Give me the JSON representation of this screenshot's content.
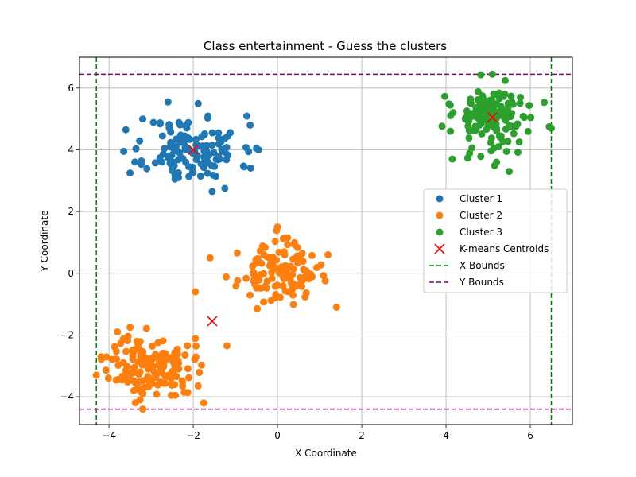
{
  "chart_data": {
    "type": "scatter",
    "title": "Class entertainment - Guess the clusters",
    "xlabel": "X Coordinate",
    "ylabel": "Y Coordinate",
    "xlim": [
      -4.7,
      7.0
    ],
    "ylim": [
      -4.9,
      7.0
    ],
    "xticks": [
      -4,
      -2,
      0,
      2,
      4,
      6
    ],
    "yticks": [
      -4,
      -2,
      0,
      2,
      4,
      6
    ],
    "xtick_labels": [
      "−4",
      "−2",
      "0",
      "2",
      "4",
      "6"
    ],
    "ytick_labels": [
      "−4",
      "−2",
      "0",
      "2",
      "4",
      "6"
    ],
    "grid": true,
    "legend_position": "center-right",
    "series": [
      {
        "name": "Cluster 1",
        "color": "#1f77b4",
        "center": [
          -2.0,
          4.0
        ],
        "spread": [
          0.55,
          0.55
        ],
        "count": 130,
        "seed": 11,
        "extra_points": [
          [
            -2.6,
            5.55
          ],
          [
            -3.6,
            4.65
          ],
          [
            -3.65,
            3.95
          ],
          [
            -3.5,
            3.25
          ],
          [
            -1.55,
            2.65
          ],
          [
            -0.65,
            4.8
          ],
          [
            -0.5,
            4.05
          ],
          [
            -0.45,
            4.0
          ],
          [
            -1.25,
            2.75
          ],
          [
            -2.35,
            3.1
          ],
          [
            -3.2,
            5.0
          ]
        ]
      },
      {
        "name": "Cluster 2",
        "color": "#ff7f0e",
        "sub_clusters": [
          {
            "center": [
              0.0,
              0.0
            ],
            "spread": [
              0.45,
              0.45
            ],
            "count": 120,
            "seed": 23
          },
          {
            "center": [
              -3.0,
              -3.0
            ],
            "spread": [
              0.5,
              0.5
            ],
            "count": 150,
            "seed": 37
          }
        ],
        "extra_points": [
          [
            -1.6,
            0.5
          ],
          [
            -1.95,
            -0.6
          ],
          [
            -1.2,
            -2.35
          ],
          [
            1.4,
            -1.1
          ],
          [
            -4.3,
            -3.3
          ],
          [
            -3.2,
            -4.4
          ],
          [
            -1.75,
            -4.2
          ],
          [
            -3.8,
            -1.9
          ],
          [
            -3.5,
            -1.75
          ],
          [
            0.0,
            1.5
          ],
          [
            1.2,
            0.6
          ]
        ]
      },
      {
        "name": "Cluster 3",
        "color": "#2ca02c",
        "center": [
          5.1,
          5.05
        ],
        "spread": [
          0.45,
          0.55
        ],
        "count": 150,
        "seed": 53,
        "extra_points": [
          [
            5.5,
            3.3
          ],
          [
            5.2,
            3.6
          ],
          [
            4.15,
            3.7
          ],
          [
            6.5,
            4.7
          ],
          [
            5.1,
            6.45
          ],
          [
            4.1,
            5.45
          ],
          [
            6.45,
            4.75
          ]
        ]
      }
    ],
    "centroids": {
      "name": "K-means Centroids",
      "color": "#ff0000",
      "points": [
        [
          -2.0,
          4.0
        ],
        [
          -1.55,
          -1.55
        ],
        [
          5.1,
          5.05
        ]
      ]
    },
    "x_bounds": {
      "name": "X Bounds",
      "color": "#008000",
      "values": [
        -4.3,
        6.5
      ]
    },
    "y_bounds": {
      "name": "Y Bounds",
      "color": "#800080",
      "values": [
        -4.4,
        6.45
      ]
    }
  }
}
